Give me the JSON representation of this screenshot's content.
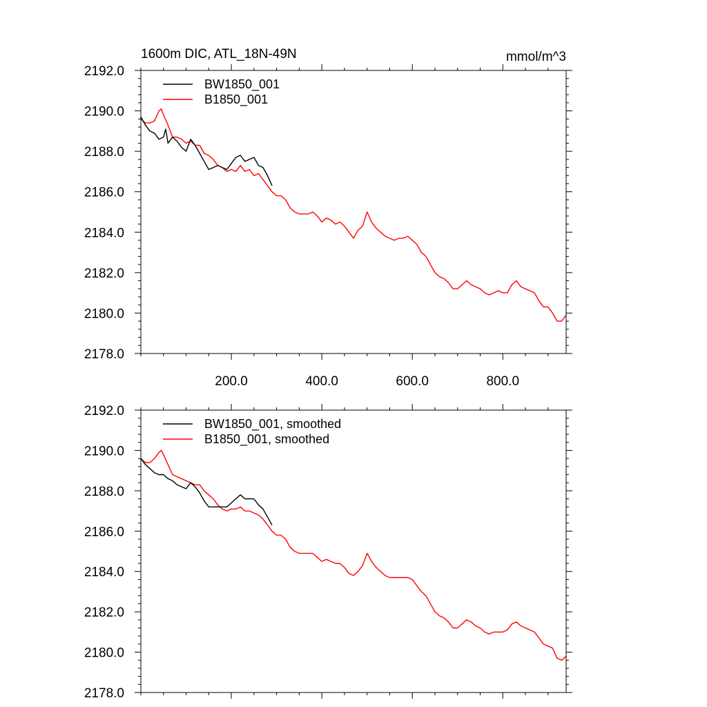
{
  "chart_data": [
    {
      "type": "line",
      "title": "1600m DIC, ATL_18N-49N",
      "units": "mmol/m^3",
      "xlim": [
        0,
        940
      ],
      "ylim": [
        2178,
        2192
      ],
      "xticks": [
        200,
        400,
        600,
        800
      ],
      "xtick_labels": [
        "200.0",
        "400.0",
        "600.0",
        "800.0"
      ],
      "yticks": [
        2178,
        2180,
        2182,
        2184,
        2186,
        2188,
        2190,
        2192
      ],
      "ytick_labels": [
        "2178.0",
        "2180.0",
        "2182.0",
        "2184.0",
        "2186.0",
        "2188.0",
        "2190.0",
        "2192.0"
      ],
      "legend_position": "top-left",
      "series": [
        {
          "name": "BW1850_001",
          "color": "#000000",
          "x": [
            0,
            10,
            20,
            30,
            40,
            50,
            55,
            60,
            70,
            80,
            90,
            100,
            110,
            120,
            130,
            140,
            150,
            160,
            170,
            180,
            190,
            200,
            210,
            220,
            230,
            240,
            250,
            260,
            270,
            280,
            290
          ],
          "y": [
            2189.7,
            2189.3,
            2189.0,
            2188.9,
            2188.6,
            2188.7,
            2189.1,
            2188.4,
            2188.7,
            2188.5,
            2188.2,
            2188.0,
            2188.6,
            2188.3,
            2187.9,
            2187.5,
            2187.1,
            2187.2,
            2187.3,
            2187.2,
            2187.1,
            2187.4,
            2187.7,
            2187.8,
            2187.5,
            2187.6,
            2187.7,
            2187.3,
            2187.2,
            2186.8,
            2186.3
          ]
        },
        {
          "name": "B1850_001",
          "color": "#ff0000",
          "x": [
            0,
            10,
            20,
            30,
            40,
            45,
            50,
            60,
            70,
            80,
            90,
            100,
            110,
            120,
            130,
            140,
            150,
            160,
            170,
            180,
            190,
            200,
            210,
            220,
            230,
            240,
            250,
            260,
            270,
            280,
            290,
            300,
            310,
            320,
            330,
            340,
            350,
            360,
            370,
            380,
            390,
            400,
            410,
            420,
            430,
            440,
            450,
            460,
            470,
            480,
            490,
            500,
            510,
            520,
            530,
            540,
            550,
            560,
            570,
            580,
            590,
            600,
            610,
            620,
            630,
            640,
            650,
            660,
            670,
            680,
            690,
            700,
            710,
            720,
            730,
            740,
            750,
            760,
            770,
            780,
            790,
            800,
            810,
            820,
            830,
            840,
            850,
            860,
            870,
            880,
            890,
            900,
            910,
            920,
            930,
            940
          ],
          "y": [
            2189.6,
            2189.4,
            2189.4,
            2189.5,
            2190.0,
            2190.1,
            2189.8,
            2189.3,
            2188.7,
            2188.7,
            2188.6,
            2188.4,
            2188.5,
            2188.3,
            2188.3,
            2187.9,
            2187.8,
            2187.6,
            2187.3,
            2187.2,
            2187.0,
            2187.1,
            2187.0,
            2187.3,
            2187.0,
            2187.1,
            2186.8,
            2186.9,
            2186.6,
            2186.3,
            2186.0,
            2185.8,
            2185.8,
            2185.6,
            2185.2,
            2185.0,
            2184.9,
            2184.9,
            2184.9,
            2185.0,
            2184.8,
            2184.5,
            2184.7,
            2184.6,
            2184.4,
            2184.5,
            2184.3,
            2184.0,
            2183.7,
            2184.1,
            2184.3,
            2185.0,
            2184.5,
            2184.2,
            2184.0,
            2183.8,
            2183.7,
            2183.6,
            2183.7,
            2183.7,
            2183.8,
            2183.6,
            2183.4,
            2183.0,
            2182.8,
            2182.4,
            2182.0,
            2181.8,
            2181.7,
            2181.5,
            2181.2,
            2181.2,
            2181.4,
            2181.6,
            2181.4,
            2181.3,
            2181.2,
            2181.0,
            2180.9,
            2181.0,
            2181.1,
            2181.0,
            2181.0,
            2181.4,
            2181.6,
            2181.3,
            2181.2,
            2181.1,
            2181.0,
            2180.6,
            2180.3,
            2180.3,
            2180.0,
            2179.6,
            2179.6,
            2179.9
          ]
        }
      ]
    },
    {
      "type": "line",
      "xlim": [
        0,
        940
      ],
      "ylim": [
        2178,
        2192
      ],
      "xticks": [
        200,
        400,
        600,
        800
      ],
      "yticks": [
        2178,
        2180,
        2182,
        2184,
        2186,
        2188,
        2190,
        2192
      ],
      "ytick_labels": [
        "2178.0",
        "2180.0",
        "2182.0",
        "2184.0",
        "2186.0",
        "2188.0",
        "2190.0",
        "2192.0"
      ],
      "legend_position": "top-left",
      "series": [
        {
          "name": "BW1850_001, smoothed",
          "color": "#000000",
          "x": [
            0,
            10,
            20,
            30,
            40,
            50,
            60,
            70,
            80,
            90,
            100,
            110,
            120,
            130,
            140,
            150,
            160,
            170,
            180,
            190,
            200,
            210,
            220,
            230,
            240,
            250,
            260,
            270,
            280,
            290
          ],
          "y": [
            2189.6,
            2189.3,
            2189.1,
            2188.9,
            2188.8,
            2188.8,
            2188.6,
            2188.5,
            2188.3,
            2188.2,
            2188.1,
            2188.4,
            2188.2,
            2187.9,
            2187.5,
            2187.2,
            2187.2,
            2187.2,
            2187.2,
            2187.2,
            2187.4,
            2187.6,
            2187.8,
            2187.6,
            2187.6,
            2187.6,
            2187.3,
            2187.1,
            2186.7,
            2186.3
          ]
        },
        {
          "name": "B1850_001, smoothed",
          "color": "#ff0000",
          "x": [
            0,
            10,
            20,
            30,
            40,
            45,
            50,
            60,
            70,
            80,
            90,
            100,
            110,
            120,
            130,
            140,
            150,
            160,
            170,
            180,
            190,
            200,
            210,
            220,
            230,
            240,
            250,
            260,
            270,
            280,
            290,
            300,
            310,
            320,
            330,
            340,
            350,
            360,
            370,
            380,
            390,
            400,
            410,
            420,
            430,
            440,
            450,
            460,
            470,
            480,
            490,
            500,
            510,
            520,
            530,
            540,
            550,
            560,
            570,
            580,
            590,
            600,
            610,
            620,
            630,
            640,
            650,
            660,
            670,
            680,
            690,
            700,
            710,
            720,
            730,
            740,
            750,
            760,
            770,
            780,
            790,
            800,
            810,
            820,
            830,
            840,
            850,
            860,
            870,
            880,
            890,
            900,
            910,
            920,
            930,
            940
          ],
          "y": [
            2189.6,
            2189.4,
            2189.4,
            2189.6,
            2189.9,
            2190.0,
            2189.8,
            2189.3,
            2188.8,
            2188.7,
            2188.6,
            2188.5,
            2188.4,
            2188.3,
            2188.3,
            2188.0,
            2187.8,
            2187.6,
            2187.3,
            2187.1,
            2187.0,
            2187.1,
            2187.1,
            2187.2,
            2187.0,
            2187.0,
            2186.9,
            2186.8,
            2186.6,
            2186.3,
            2186.0,
            2185.8,
            2185.8,
            2185.6,
            2185.2,
            2185.0,
            2184.9,
            2184.9,
            2184.9,
            2184.9,
            2184.7,
            2184.5,
            2184.6,
            2184.5,
            2184.4,
            2184.4,
            2184.2,
            2183.9,
            2183.8,
            2184.0,
            2184.3,
            2184.9,
            2184.5,
            2184.2,
            2184.0,
            2183.8,
            2183.7,
            2183.7,
            2183.7,
            2183.7,
            2183.7,
            2183.6,
            2183.3,
            2183.0,
            2182.8,
            2182.4,
            2182.0,
            2181.8,
            2181.7,
            2181.5,
            2181.2,
            2181.2,
            2181.4,
            2181.6,
            2181.5,
            2181.3,
            2181.2,
            2181.0,
            2180.9,
            2181.0,
            2181.0,
            2181.0,
            2181.1,
            2181.4,
            2181.5,
            2181.3,
            2181.2,
            2181.1,
            2181.0,
            2180.7,
            2180.4,
            2180.3,
            2180.2,
            2179.7,
            2179.6,
            2179.8
          ]
        }
      ]
    }
  ]
}
